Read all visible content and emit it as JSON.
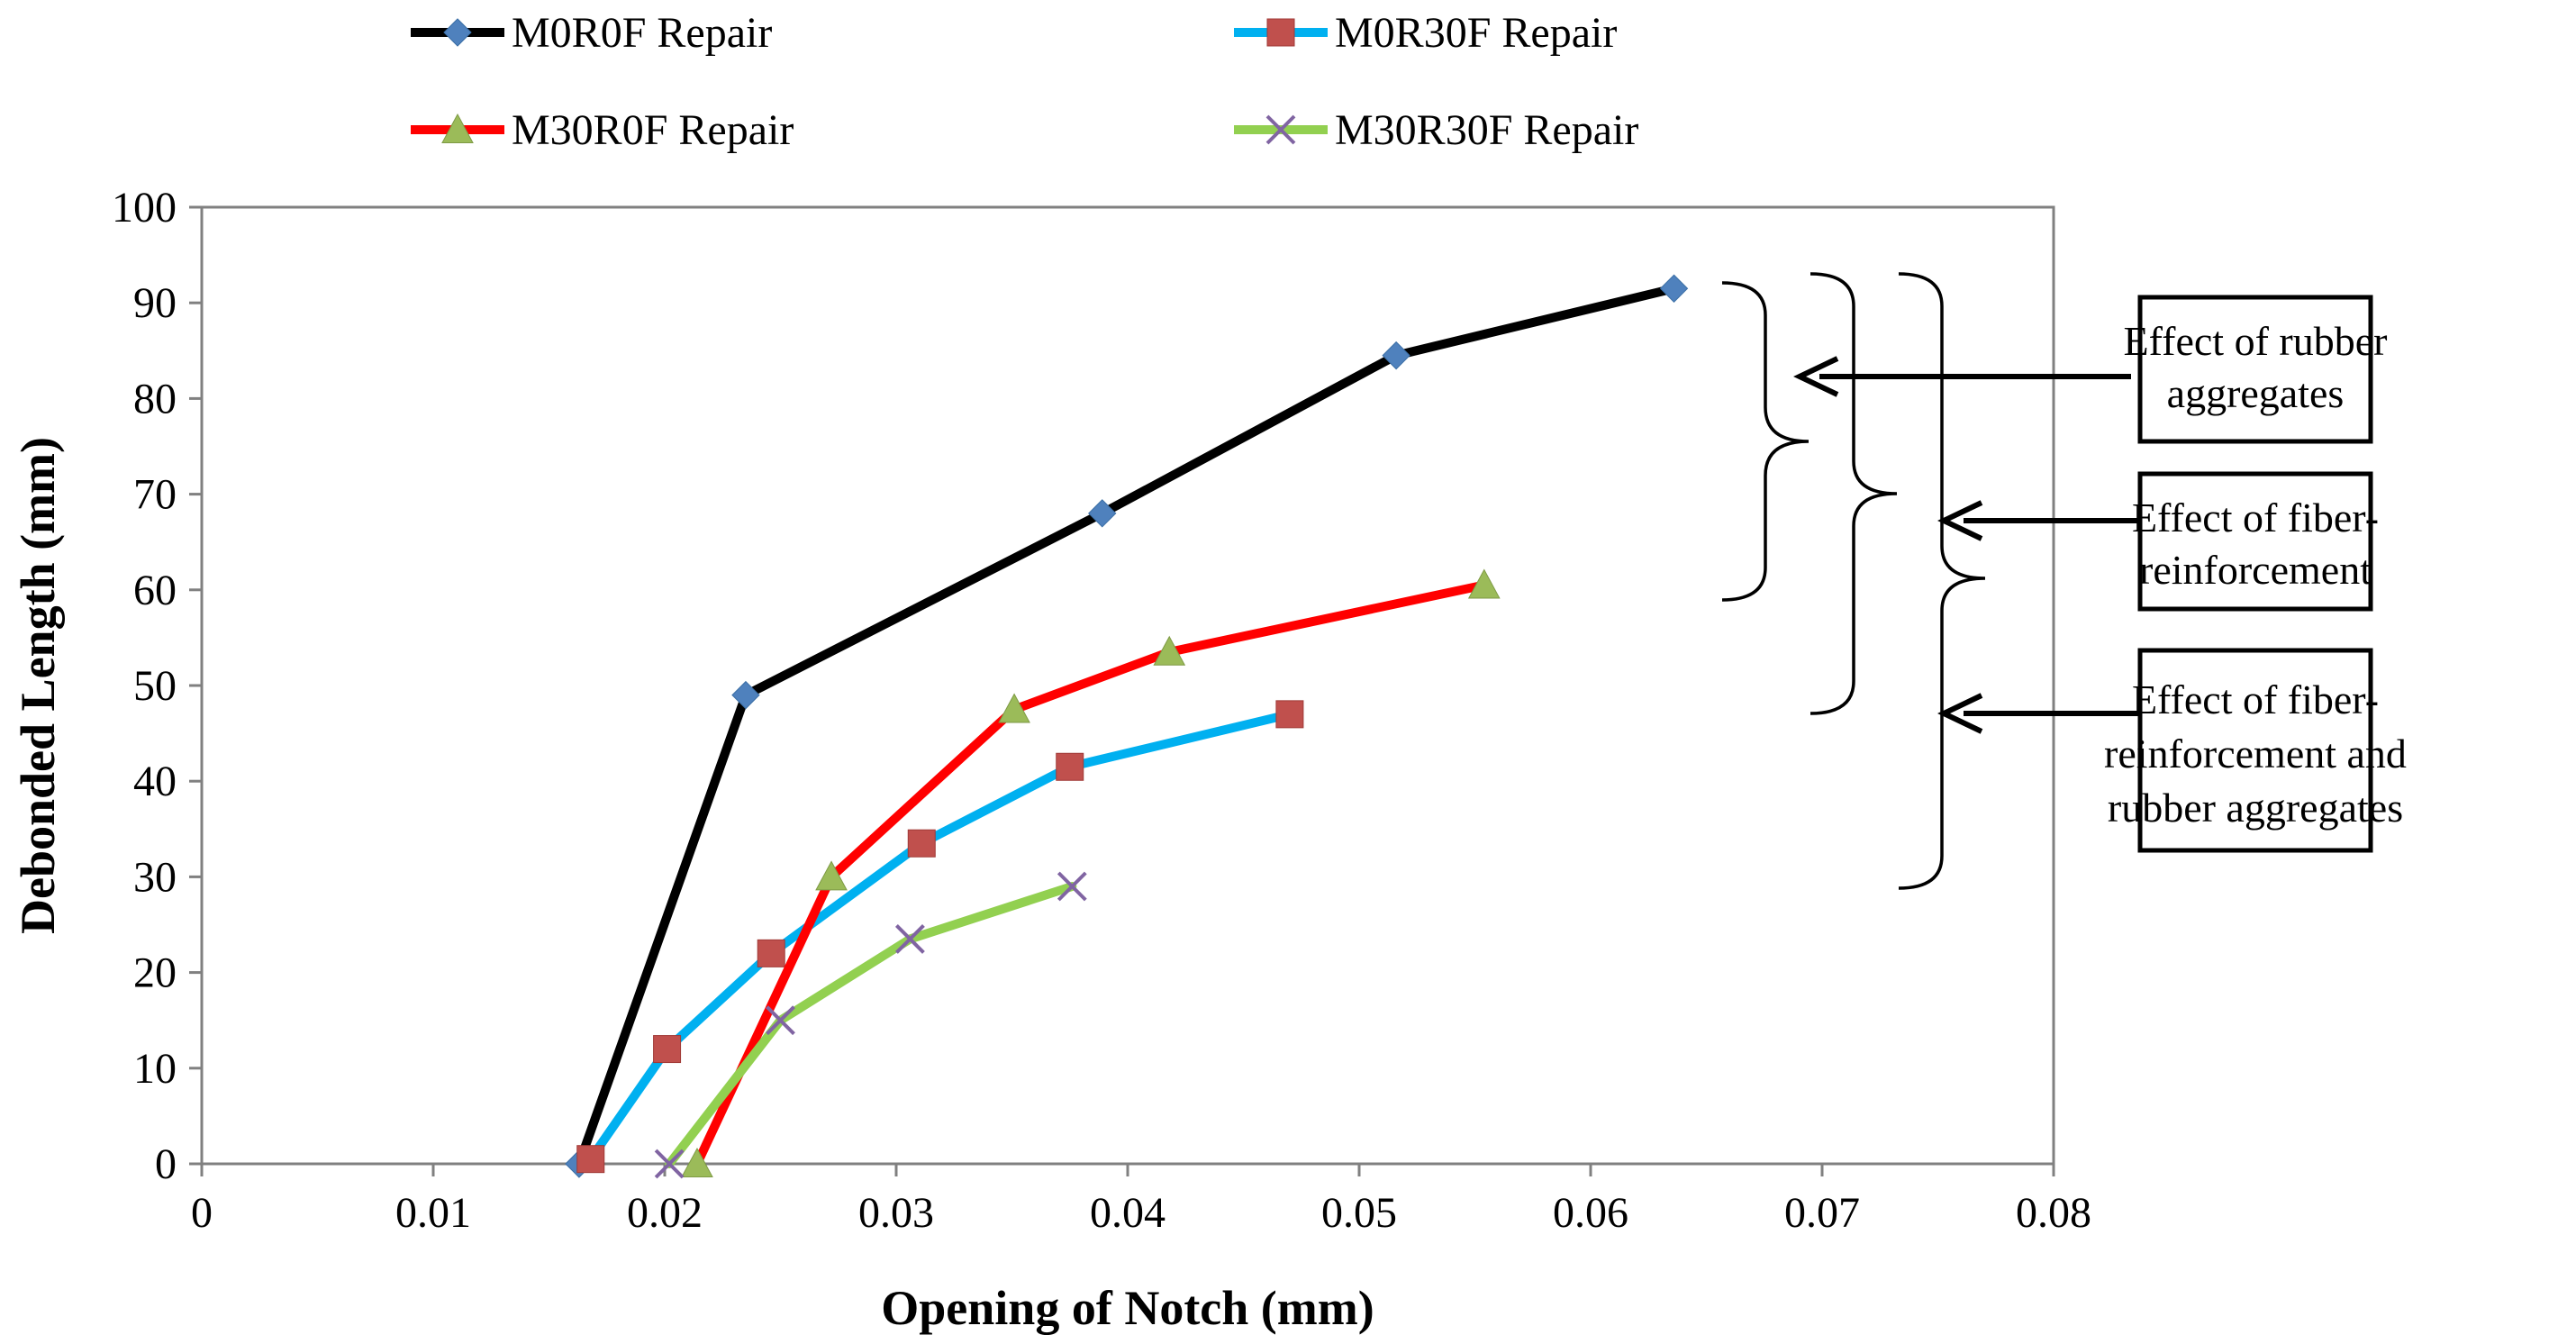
{
  "chart_data": {
    "type": "line",
    "title": "",
    "xlabel": "Opening  of Notch (mm)",
    "ylabel": "Debonded Length (mm)",
    "xlim": [
      0,
      0.08
    ],
    "ylim": [
      0,
      100
    ],
    "xticks": [
      0,
      0.01,
      0.02,
      0.03,
      0.04,
      0.05,
      0.06,
      0.07,
      0.08
    ],
    "xtick_labels": [
      "0",
      "0.01",
      "0.02",
      "0.03",
      "0.04",
      "0.05",
      "0.06",
      "0.07",
      "0.08"
    ],
    "yticks": [
      0,
      10,
      20,
      30,
      40,
      50,
      60,
      70,
      80,
      90,
      100
    ],
    "ytick_labels": [
      "0",
      "10",
      "20",
      "30",
      "40",
      "50",
      "60",
      "70",
      "80",
      "90",
      "100"
    ],
    "grid": false,
    "legend_position": "top",
    "series": [
      {
        "name": "M0R0F Repair",
        "color": "#000000",
        "marker": "diamond",
        "marker_color": "#4F81BD",
        "x": [
          0.0163,
          0.0235,
          0.0389,
          0.0516,
          0.0636
        ],
        "y": [
          0,
          49,
          68,
          84.5,
          91.5
        ]
      },
      {
        "name": "M0R30F Repair",
        "color": "#00B0F0",
        "marker": "square",
        "marker_color": "#C0504D",
        "x": [
          0.0168,
          0.0201,
          0.0246,
          0.0311,
          0.0375,
          0.047
        ],
        "y": [
          0.5,
          12,
          22,
          33.5,
          41.5,
          47
        ]
      },
      {
        "name": "M30R0F Repair",
        "color": "#FF0000",
        "marker": "triangle",
        "marker_color": "#9BBB59",
        "x": [
          0.0214,
          0.0272,
          0.0351,
          0.0418,
          0.0554
        ],
        "y": [
          0,
          30,
          47.5,
          53.5,
          60.5
        ]
      },
      {
        "name": "M30R30F Repair",
        "color": "#92D050",
        "marker": "cross",
        "marker_color": "#8064A2",
        "x": [
          0.0202,
          0.025,
          0.0306,
          0.0376
        ],
        "y": [
          0,
          15,
          23.5,
          29
        ]
      }
    ],
    "annotations": [
      {
        "id": "rubber",
        "text_lines": [
          "Effect of rubber",
          "aggregates"
        ]
      },
      {
        "id": "fiber",
        "text_lines": [
          "Effect of fiber-",
          "reinforcement"
        ]
      },
      {
        "id": "both",
        "text_lines": [
          "Effect of fiber-",
          "reinforcement and",
          "rubber aggregates"
        ]
      }
    ]
  }
}
